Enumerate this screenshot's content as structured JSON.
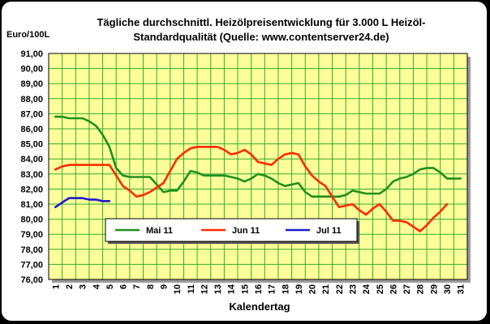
{
  "chart_data": {
    "type": "line",
    "title_lines": [
      "Tägliche durchschnittl. Heizölpreisentwicklung für 3.000 L Heizöl-",
      "Standardqualität (Quelle: www.contentserver24.de)"
    ],
    "ylabel": "Euro/100L",
    "xlabel": "Kalendertag",
    "ylim": [
      76,
      91
    ],
    "yticks": [
      "76,00",
      "77,00",
      "78,00",
      "79,00",
      "80,00",
      "81,00",
      "82,00",
      "83,00",
      "84,00",
      "85,00",
      "86,00",
      "87,00",
      "88,00",
      "89,00",
      "90,00",
      "91,00"
    ],
    "x": [
      1,
      2,
      3,
      4,
      5,
      6,
      7,
      8,
      9,
      10,
      11,
      12,
      13,
      14,
      15,
      16,
      17,
      18,
      19,
      20,
      21,
      22,
      23,
      24,
      25,
      26,
      27,
      28,
      29,
      30,
      31
    ],
    "grid": true,
    "plot_background": "#ffff99",
    "grid_color": "#33aa33",
    "legend_position": "inside-bottom-left",
    "series": [
      {
        "name": "Mai 11",
        "color": "#1f8f1f",
        "x": [
          1,
          1.5,
          2,
          2.5,
          3,
          3.5,
          4,
          4.5,
          5,
          5.5,
          6,
          6.5,
          7,
          7.5,
          8,
          8.5,
          9,
          9.5,
          10,
          10.5,
          11,
          11.5,
          12,
          12.5,
          13,
          13.5,
          14,
          14.5,
          15,
          15.5,
          16,
          16.5,
          17,
          17.5,
          18,
          18.5,
          19,
          19.5,
          20,
          20.5,
          21,
          21.5,
          22,
          22.5,
          23,
          23.5,
          24,
          24.5,
          25,
          25.5,
          26,
          26.5,
          27,
          27.5,
          28,
          28.5,
          29,
          29.5,
          30,
          30.5,
          31
        ],
        "values": [
          86.8,
          86.8,
          86.7,
          86.7,
          86.7,
          86.5,
          86.2,
          85.6,
          84.8,
          83.4,
          82.9,
          82.8,
          82.8,
          82.8,
          82.8,
          82.3,
          81.8,
          81.9,
          81.9,
          82.5,
          83.2,
          83.1,
          82.9,
          82.9,
          82.9,
          82.9,
          82.8,
          82.7,
          82.5,
          82.7,
          83.0,
          82.9,
          82.7,
          82.4,
          82.2,
          82.3,
          82.4,
          81.8,
          81.5,
          81.5,
          81.5,
          81.5,
          81.5,
          81.6,
          81.9,
          81.8,
          81.7,
          81.7,
          81.7,
          82.0,
          82.5,
          82.7,
          82.8,
          83.0,
          83.3,
          83.4,
          83.4,
          83.1,
          82.7,
          82.7,
          82.7
        ]
      },
      {
        "name": "Jun 11",
        "color": "#ff2a00",
        "x": [
          1,
          1.5,
          2,
          2.5,
          3,
          3.5,
          4,
          4.5,
          5,
          5.5,
          6,
          6.5,
          7,
          7.5,
          8,
          8.5,
          9,
          9.5,
          10,
          10.5,
          11,
          11.5,
          12,
          12.5,
          13,
          13.5,
          14,
          14.5,
          15,
          15.5,
          16,
          16.5,
          17,
          17.5,
          18,
          18.5,
          19,
          19.5,
          20,
          20.5,
          21,
          21.5,
          22,
          22.5,
          23,
          23.5,
          24,
          24.5,
          25,
          25.5,
          26,
          26.5,
          27,
          27.5,
          28,
          28.5,
          29,
          29.5,
          30
        ],
        "values": [
          83.3,
          83.5,
          83.6,
          83.6,
          83.6,
          83.6,
          83.6,
          83.6,
          83.6,
          82.9,
          82.2,
          81.9,
          81.5,
          81.6,
          81.8,
          82.1,
          82.4,
          83.2,
          84.0,
          84.4,
          84.7,
          84.8,
          84.8,
          84.8,
          84.8,
          84.6,
          84.3,
          84.4,
          84.6,
          84.3,
          83.8,
          83.7,
          83.6,
          84.0,
          84.3,
          84.4,
          84.3,
          83.5,
          82.9,
          82.5,
          82.2,
          81.5,
          80.8,
          80.9,
          81.0,
          80.6,
          80.3,
          80.7,
          81.0,
          80.5,
          79.9,
          79.9,
          79.8,
          79.5,
          79.2,
          79.6,
          80.1,
          80.5,
          81.0
        ]
      },
      {
        "name": "Jul 11",
        "color": "#1a1acc",
        "x": [
          1,
          1.5,
          2,
          2.5,
          3,
          3.5,
          4,
          4.5,
          5
        ],
        "values": [
          80.8,
          81.1,
          81.4,
          81.4,
          81.4,
          81.3,
          81.3,
          81.2,
          81.2
        ]
      }
    ]
  }
}
